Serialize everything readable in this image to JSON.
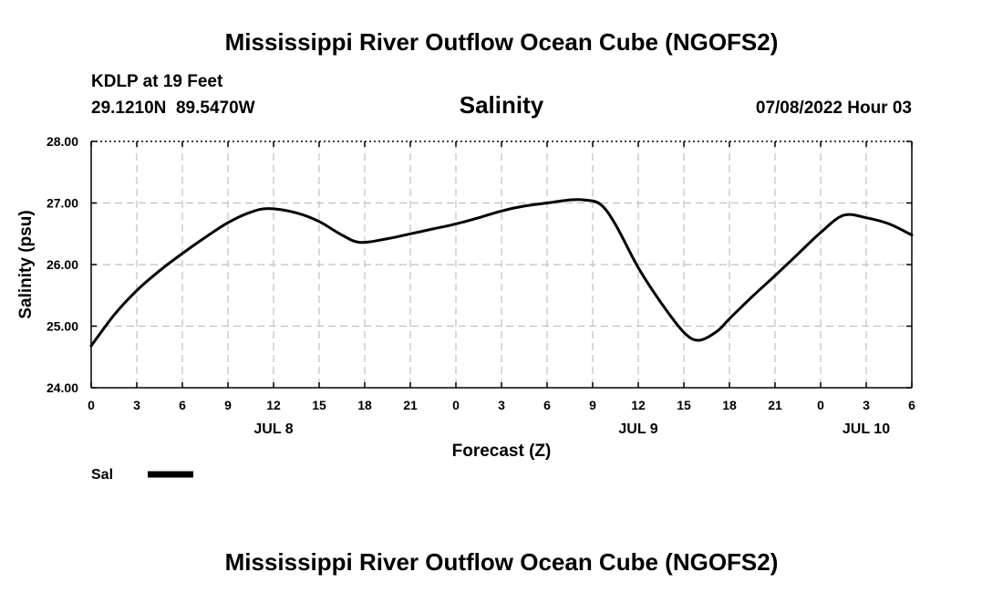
{
  "header": {
    "title_top": "Mississippi River Outflow Ocean Cube (NGOFS2)",
    "station": "KDLP at 19 Feet",
    "coords": "29.1210N  89.5470W",
    "variable": "Salinity",
    "timestamp": "07/08/2022 Hour 03",
    "title_bottom": "Mississippi River Outflow Ocean Cube (NGOFS2)"
  },
  "chart_data": {
    "type": "line",
    "title": "Salinity",
    "xlabel": "Forecast (Z)",
    "ylabel": "Salinity (psu)",
    "ylim": [
      24,
      28
    ],
    "xlim": [
      0,
      54
    ],
    "grid": true,
    "x_tick_values": [
      0,
      3,
      6,
      9,
      12,
      15,
      18,
      21,
      24,
      27,
      30,
      33,
      36,
      39,
      42,
      45,
      48,
      51,
      54
    ],
    "x_tick_labels": [
      "0",
      "3",
      "6",
      "9",
      "12",
      "15",
      "18",
      "21",
      "0",
      "3",
      "6",
      "9",
      "12",
      "15",
      "18",
      "21",
      "0",
      "3",
      "6"
    ],
    "y_tick_values": [
      24,
      25,
      26,
      27,
      28
    ],
    "y_tick_labels": [
      "24.00",
      "25.00",
      "26.00",
      "27.00",
      "28.00"
    ],
    "day_labels": [
      {
        "x": 12,
        "label": "JUL 8"
      },
      {
        "x": 36,
        "label": "JUL 9"
      },
      {
        "x": 51,
        "label": "JUL 10"
      }
    ],
    "legend_position": "bottom-left",
    "series": [
      {
        "name": "Sal",
        "color": "#000000",
        "x": [
          0,
          1.5,
          3,
          4.5,
          6,
          7.5,
          9,
          10.5,
          11.7,
          13.5,
          15,
          16.5,
          17.7,
          19.5,
          21,
          22.5,
          24,
          25.5,
          27,
          28.5,
          30,
          31.5,
          32.4,
          33.5,
          34.5,
          36,
          37.5,
          39,
          40,
          41.2,
          42,
          43.5,
          45,
          46.5,
          48,
          49.5,
          51,
          52.5,
          54
        ],
        "values": [
          24.68,
          25.18,
          25.58,
          25.9,
          26.18,
          26.44,
          26.68,
          26.85,
          26.91,
          26.84,
          26.7,
          26.48,
          26.36,
          26.42,
          26.5,
          26.58,
          26.66,
          26.76,
          26.87,
          26.95,
          27.0,
          27.05,
          27.05,
          26.98,
          26.65,
          25.95,
          25.38,
          24.9,
          24.77,
          24.92,
          25.12,
          25.48,
          25.82,
          26.17,
          26.52,
          26.8,
          26.76,
          26.66,
          26.48
        ]
      }
    ]
  }
}
